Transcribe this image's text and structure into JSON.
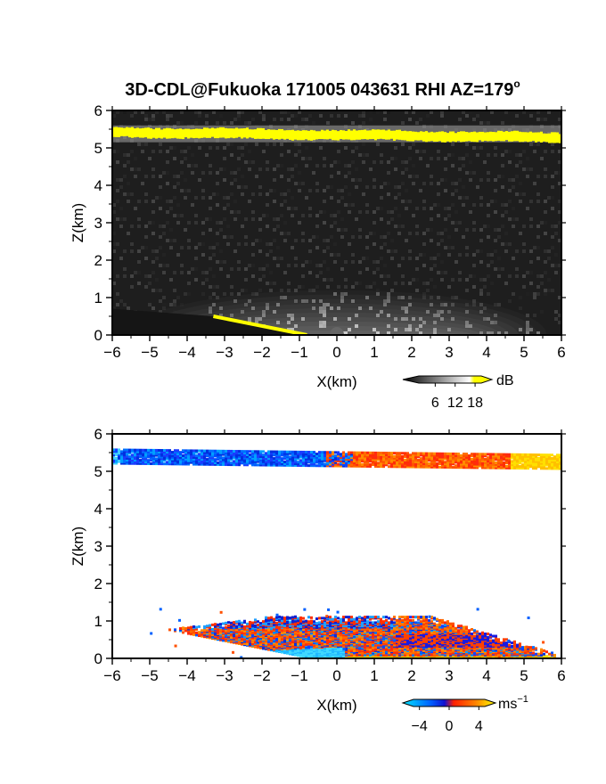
{
  "page": {
    "title": "3D-CDL@Fukuoka 171005 043631 RHI AZ=179",
    "title_superscript": "o"
  },
  "chart_data": [
    {
      "type": "heatmap",
      "name": "reflectivity",
      "xlabel": "X(km)",
      "ylabel": "Z(km)",
      "xlim": [
        -6,
        6
      ],
      "ylim": [
        0,
        6
      ],
      "x_ticks": [
        -6,
        -5,
        -4,
        -3,
        -2,
        -1,
        0,
        1,
        2,
        3,
        4,
        5,
        6
      ],
      "y_ticks": [
        0,
        1,
        2,
        3,
        4,
        5,
        6
      ],
      "colorbar": {
        "unit": "dB",
        "tick_labels": [
          "6",
          "12",
          "18"
        ],
        "ticks": [
          6,
          12,
          18
        ],
        "range": [
          0,
          22
        ],
        "colors": [
          "#000000",
          "#ffffff",
          "#ffff00"
        ]
      },
      "features": {
        "cloud_layer_z_km": [
          5.3,
          5.5
        ],
        "cloud_layer_color": "#ffff00",
        "ground_x_km": [
          -3.3,
          -0.8
        ],
        "ground_z_km": [
          0.5,
          0.0
        ],
        "boundary_layer_top_km": 1.2
      }
    },
    {
      "type": "heatmap",
      "name": "doppler_velocity",
      "xlabel": "X(km)",
      "ylabel": "Z(km)",
      "xlim": [
        -6,
        6
      ],
      "ylim": [
        0,
        6
      ],
      "x_ticks": [
        -6,
        -5,
        -4,
        -3,
        -2,
        -1,
        0,
        1,
        2,
        3,
        4,
        5,
        6
      ],
      "y_ticks": [
        0,
        1,
        2,
        3,
        4,
        5,
        6
      ],
      "colorbar": {
        "unit": "ms",
        "unit_superscript": "−1",
        "tick_labels": [
          "−4",
          "0",
          "4"
        ],
        "ticks": [
          -4,
          0,
          4
        ],
        "range": [
          -6,
          6
        ],
        "colors": [
          "#00e5ff",
          "#0060ff",
          "#1010d0",
          "#ff2000",
          "#ff8000",
          "#ffff00"
        ]
      },
      "features": {
        "cloud_layer_z_km": [
          5.2,
          5.65
        ],
        "cloud_neg_x_km": [
          -6,
          0
        ],
        "cloud_pos_x_km": [
          0,
          6
        ],
        "boundary_layer_x_km": [
          -5,
          5.8
        ],
        "boundary_layer_top_km": 1.2
      }
    }
  ]
}
